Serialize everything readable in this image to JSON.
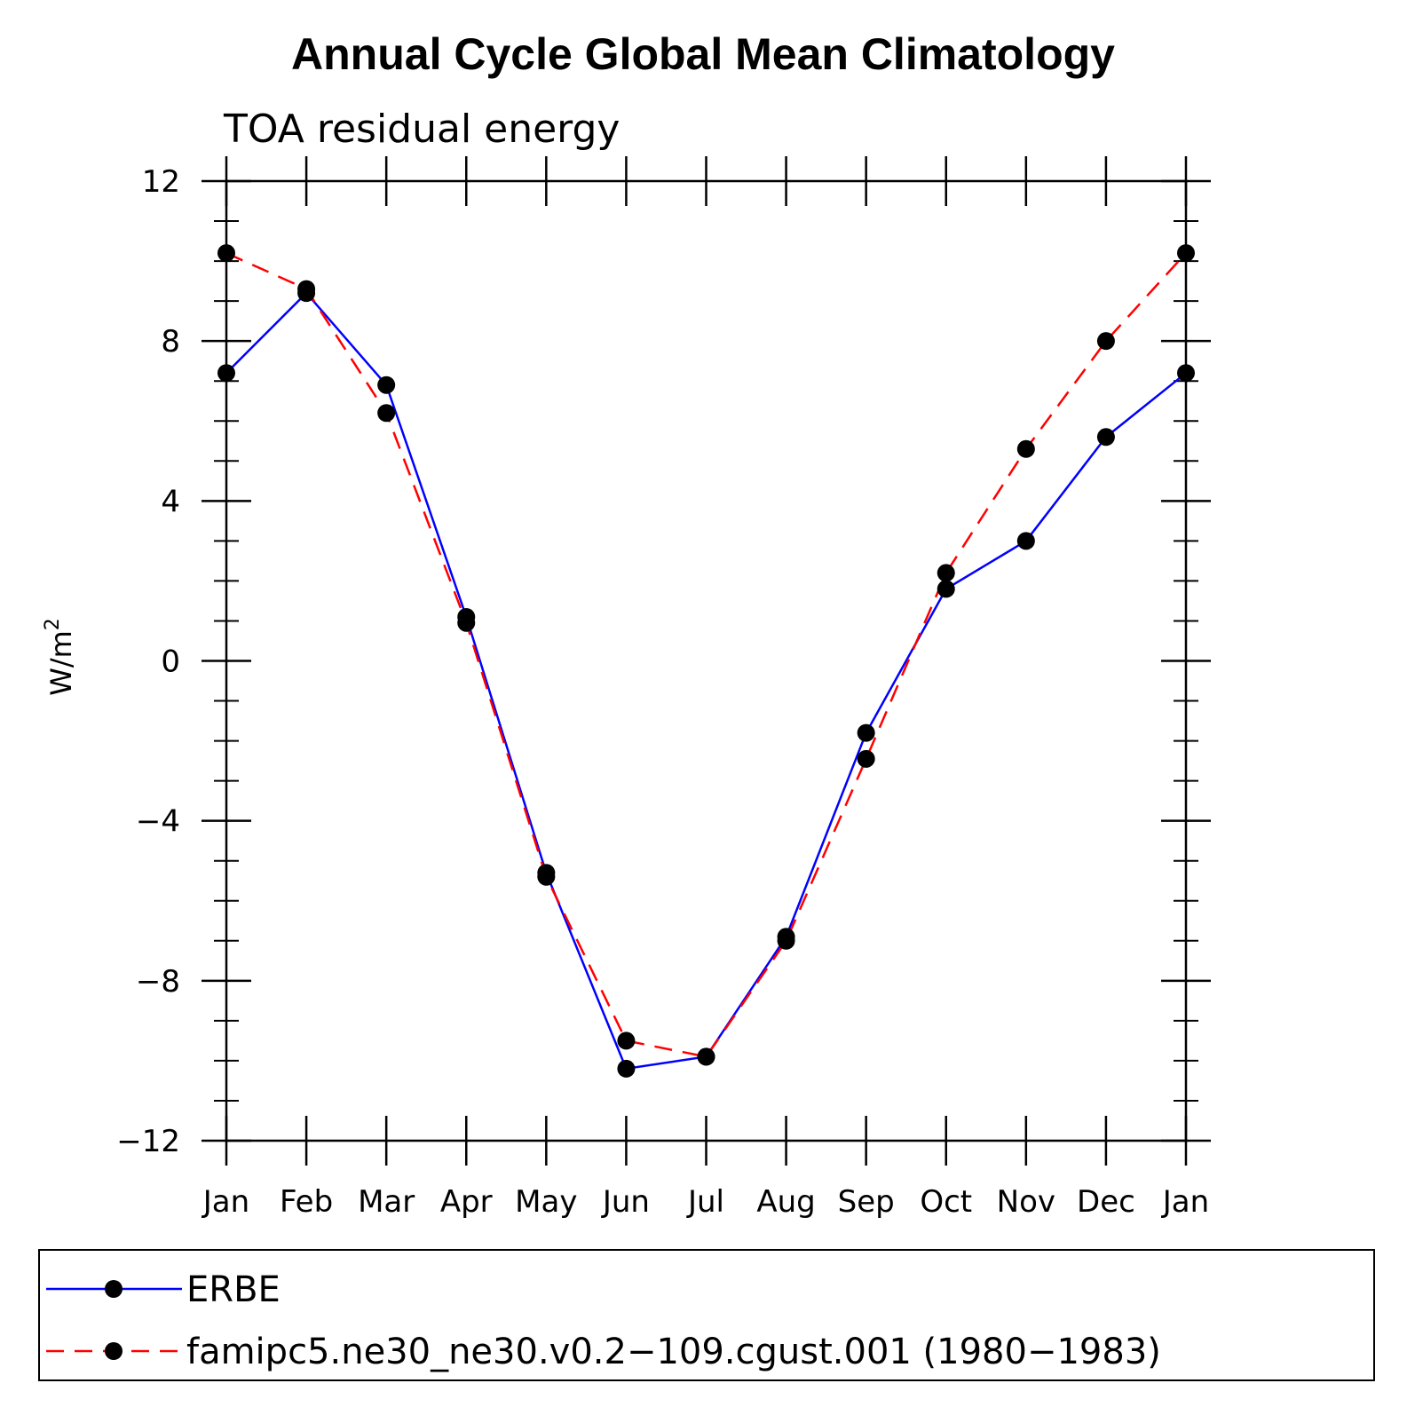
{
  "chart_data": {
    "type": "line",
    "title": "Annual Cycle Global Mean Climatology",
    "subtitle": "TOA residual energy",
    "xlabel": "",
    "ylabel": "W/m",
    "ylabel_superscript": "2",
    "categories": [
      "Jan",
      "Feb",
      "Mar",
      "Apr",
      "May",
      "Jun",
      "Jul",
      "Aug",
      "Sep",
      "Oct",
      "Nov",
      "Dec",
      "Jan"
    ],
    "ylim": [
      -12,
      12
    ],
    "yticks": [
      12,
      8,
      4,
      0,
      -4,
      -8,
      -12
    ],
    "ytick_labels": [
      "12",
      "8",
      "4",
      "0",
      "−4",
      "−8",
      "−12"
    ],
    "series": [
      {
        "name": "ERBE",
        "color": "#0000ff",
        "style": "solid",
        "values": [
          7.2,
          9.2,
          6.9,
          1.1,
          -5.3,
          -10.2,
          -9.9,
          -6.9,
          -1.8,
          1.8,
          3.0,
          5.6,
          7.2
        ]
      },
      {
        "name": "famipc5.ne30_ne30.v0.2−109.cgust.001 (1980−1983)",
        "color": "#ff0000",
        "style": "dashed",
        "values": [
          10.2,
          9.3,
          6.2,
          0.95,
          -5.4,
          -9.5,
          -9.9,
          -7.0,
          -2.45,
          2.2,
          5.3,
          8.0,
          10.2
        ]
      }
    ],
    "legend_position": "bottom"
  }
}
